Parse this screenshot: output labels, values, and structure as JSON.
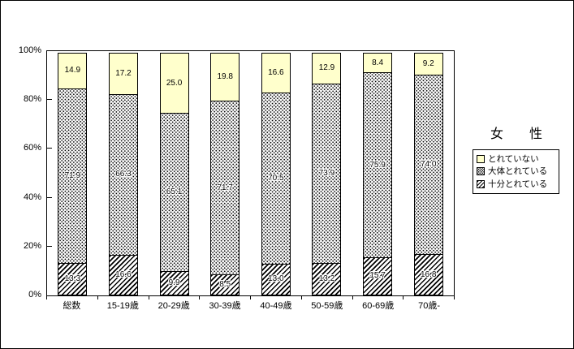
{
  "chart_data": {
    "type": "bar",
    "stacked": true,
    "title": "女　性",
    "categories": [
      "総数",
      "15-19歳",
      "20-29歳",
      "30-39歳",
      "40-49歳",
      "50-59歳",
      "60-69歳",
      "70歳-"
    ],
    "series": [
      {
        "name": "十分とれている",
        "pattern": "hatch",
        "values": [
          13.3,
          16.6,
          9.9,
          8.5,
          13.0,
          13.2,
          15.7,
          16.8
        ]
      },
      {
        "name": "大体とれている",
        "pattern": "dots",
        "values": [
          71.9,
          66.3,
          65.1,
          71.7,
          70.5,
          73.9,
          75.9,
          74.0
        ]
      },
      {
        "name": "とれていない",
        "pattern": "solid",
        "color": "#FFFFCC",
        "values": [
          14.9,
          17.2,
          25.0,
          19.8,
          16.6,
          12.9,
          8.4,
          9.2
        ]
      }
    ],
    "ylim": [
      0,
      100
    ],
    "y_tick_values": [
      100,
      80,
      60,
      40,
      20,
      0
    ],
    "y_tick_labels": [
      "100%",
      "80%",
      "60%",
      "40%",
      "20%",
      "0%"
    ],
    "grid": false,
    "legend_position": "right"
  },
  "legend": {
    "items": [
      {
        "label": "とれていない",
        "swatch": "yellow"
      },
      {
        "label": "大体とれている",
        "swatch": "dots"
      },
      {
        "label": "十分とれている",
        "swatch": "hatch"
      }
    ]
  },
  "colors": {
    "band_yellow": "#FFFFCC",
    "axis": "#000000",
    "background": "#FFFFFF"
  }
}
